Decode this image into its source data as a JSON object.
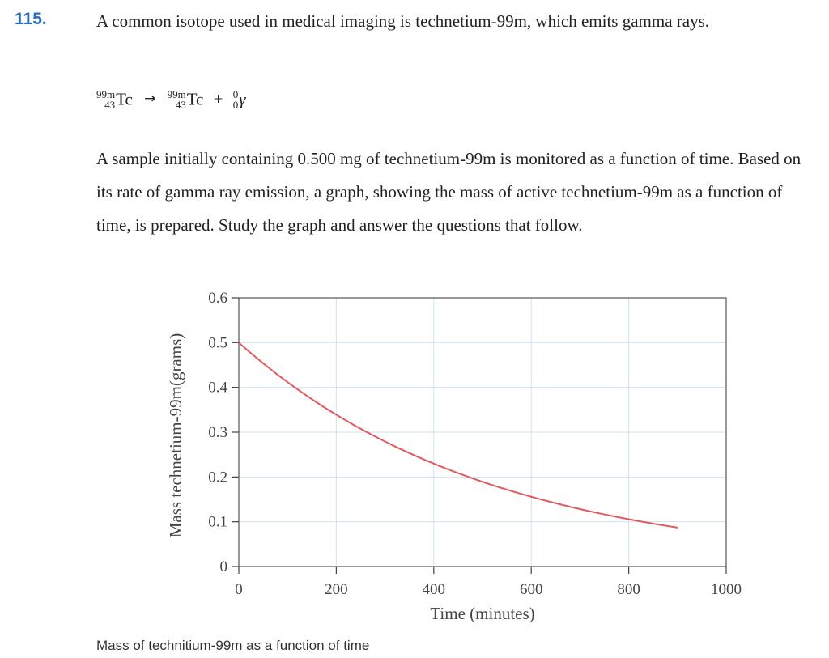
{
  "problem": {
    "number": "115.",
    "intro": "A common isotope used in medical imaging is technetium-99m, which emits gamma rays.",
    "equation": {
      "reactant": {
        "mass": "99m",
        "atomic": "43",
        "symbol": "Tc"
      },
      "arrow": "→",
      "product": {
        "mass": "99m",
        "atomic": "43",
        "symbol": "Tc"
      },
      "plus": "+",
      "emitted": {
        "mass": "0",
        "atomic": "0",
        "symbol": "γ"
      }
    },
    "description": "A sample initially containing 0.500 mg of technetium-99m is monitored as a function of time. Based on its rate of gamma ray emission, a graph, showing the mass of active technetium-99m as a function of time, is prepared. Study the graph and answer the questions that follow.",
    "caption": "Mass of technitium-99m as a function of time"
  },
  "chart_data": {
    "type": "line",
    "title": "",
    "xlabel": "Time (minutes)",
    "ylabel": "Mass technetium-99m(grams)",
    "xlim": [
      0,
      1000
    ],
    "ylim": [
      0,
      0.6
    ],
    "x_ticks": [
      "0",
      "200",
      "400",
      "600",
      "800",
      "1000"
    ],
    "y_ticks": [
      "0",
      "0.1",
      "0.2",
      "0.3",
      "0.4",
      "0.5",
      "0.6"
    ],
    "grid": true,
    "line_color": "#e05a5f",
    "grid_color": "#cfe2f3",
    "series": [
      {
        "x": [
          0,
          100,
          200,
          300,
          400,
          500,
          600,
          700,
          800,
          900
        ],
        "y": [
          0.5,
          0.41,
          0.34,
          0.28,
          0.23,
          0.19,
          0.157,
          0.129,
          0.106,
          0.087
        ]
      }
    ]
  }
}
